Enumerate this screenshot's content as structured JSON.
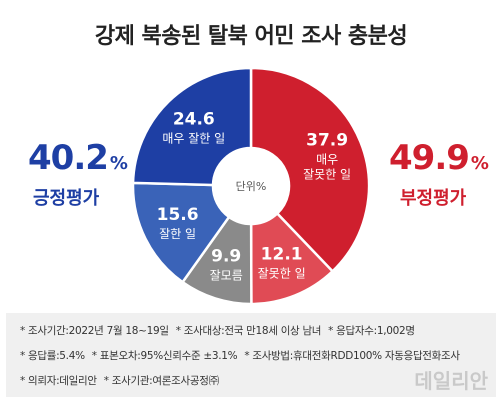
{
  "chart_data": {
    "type": "pie",
    "title": "강제 북송된 탈북 어민 조사 충분성",
    "center_label": "단위%",
    "series": [
      {
        "value": "37.9",
        "label_lines": [
          "매우",
          "잘못한 일"
        ],
        "color": "#cf1f2e"
      },
      {
        "value": "12.1",
        "label_lines": [
          "잘못한 일"
        ],
        "color": "#e04b55"
      },
      {
        "value": "9.9",
        "label_lines": [
          "잘모름"
        ],
        "color": "#8a8a8a"
      },
      {
        "value": "15.6",
        "label_lines": [
          "잘한 일"
        ],
        "color": "#3a63b8"
      },
      {
        "value": "24.6",
        "label_lines": [
          "매우 잘한 일"
        ],
        "color": "#1e3fa4"
      }
    ],
    "summary_left": {
      "value": "40.2",
      "unit": "%",
      "label": "긍정평가",
      "color": "#1e3fa4"
    },
    "summary_right": {
      "value": "49.9",
      "unit": "%",
      "label": "부정평가",
      "color": "#cf1f2e"
    }
  },
  "notes": [
    [
      "* 조사기간:2022년 7월 18~19일",
      "* 조사대상:전국 만18세 이상 남녀",
      "* 응답자수:1,002명"
    ],
    [
      "* 응답률:5.4%",
      "* 표본오차:95%신뢰수준 ±3.1%",
      "* 조사방법:휴대전화RDD100% 자동응답전화조사"
    ],
    [
      "* 의뢰자:데일리안",
      "* 조사기관:여론조사공정㈜"
    ]
  ],
  "watermark": "데일리안"
}
